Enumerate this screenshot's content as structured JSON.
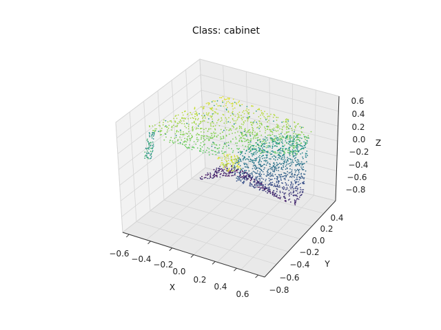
{
  "chart_data": {
    "type": "scatter",
    "subtype": "3d-point-cloud",
    "title": "Class: cabinet",
    "xlabel": "X",
    "ylabel": "Y",
    "zlabel": "Z",
    "xlim": [
      -0.65,
      0.65
    ],
    "ylim": [
      -0.85,
      0.45
    ],
    "zlim": [
      -0.9,
      0.7
    ],
    "xticks": [
      "−0.6",
      "−0.4",
      "−0.2",
      "0.0",
      "0.2",
      "0.4",
      "0.6"
    ],
    "yticks": [
      "−0.8",
      "−0.6",
      "−0.4",
      "−0.2",
      "0.0",
      "0.2",
      "0.4"
    ],
    "zticks": [
      "−0.8",
      "−0.6",
      "−0.4",
      "−0.2",
      "0.0",
      "0.2",
      "0.4",
      "0.6"
    ],
    "grid": true,
    "colormap": "viridis",
    "color_by": "z",
    "panes": {
      "color": "#f2f2f2",
      "grid_color": "#d5d5d5"
    },
    "surfaces": [
      {
        "name": "top panel",
        "x": [
          -0.6,
          0.6
        ],
        "y": [
          -0.3,
          0.4
        ],
        "z_range": [
          0.35,
          0.55
        ]
      },
      {
        "name": "side panel",
        "x": [
          0.2,
          0.6
        ],
        "y": [
          -0.8,
          -0.1
        ],
        "z_range": [
          -0.9,
          0.3
        ]
      },
      {
        "name": "lower fin",
        "x": [
          -0.4,
          0.2
        ],
        "y": [
          -0.3,
          0.1
        ],
        "z_range": [
          -0.8,
          -0.2
        ]
      },
      {
        "name": "left edge strip",
        "x": [
          -0.55,
          -0.5
        ],
        "y": [
          -0.2,
          0.4
        ],
        "z_range": [
          -0.4,
          0.3
        ]
      }
    ]
  }
}
